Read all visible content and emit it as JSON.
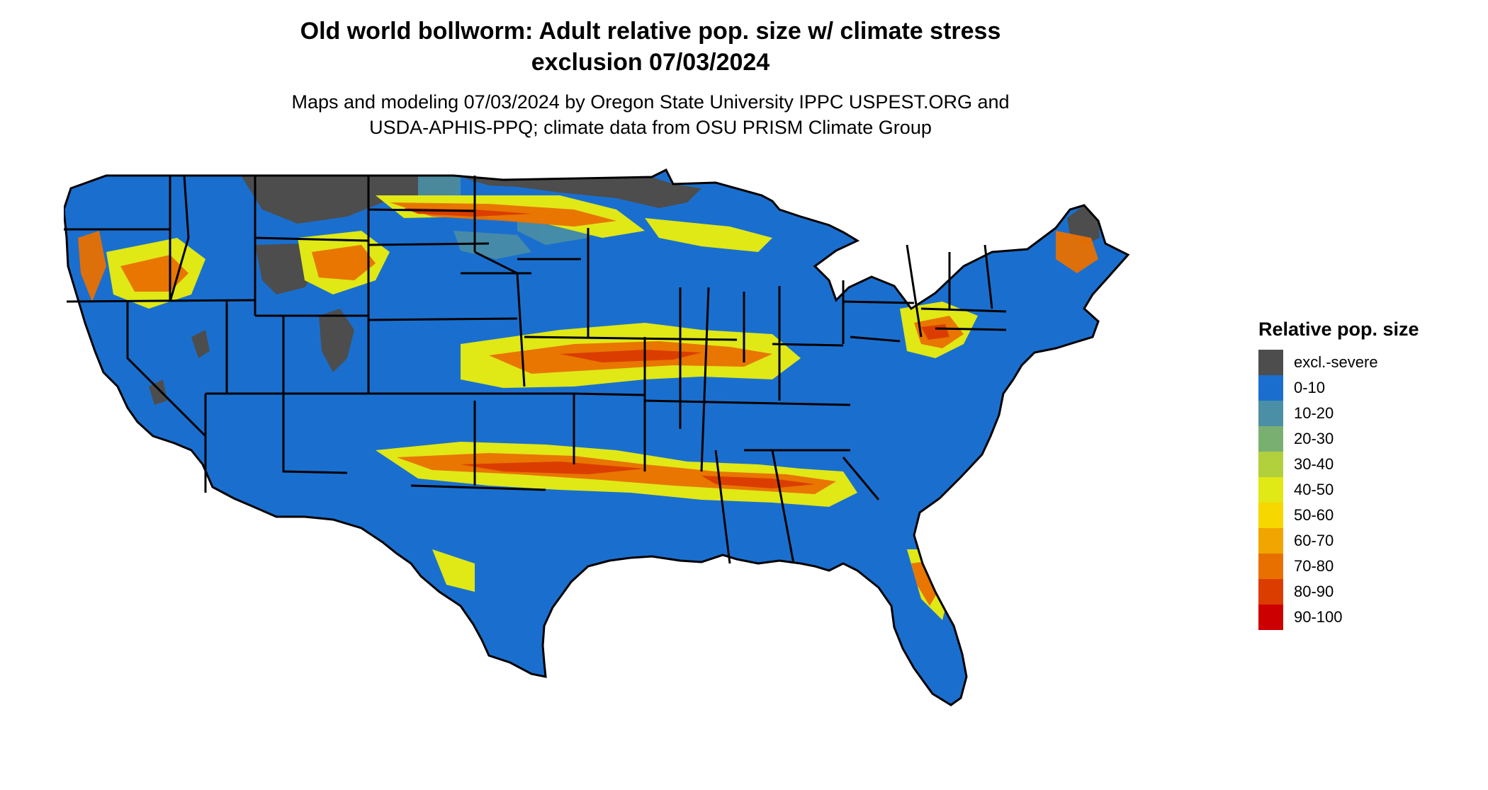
{
  "header": {
    "title_line1": "Old world bollworm: Adult relative pop. size w/ climate stress",
    "title_line2": "exclusion 07/03/2024",
    "subtitle_line1": "Maps and modeling 07/03/2024 by Oregon State University IPPC USPEST.ORG and",
    "subtitle_line2": "USDA-APHIS-PPQ; climate data from OSU PRISM Climate Group"
  },
  "legend": {
    "title": "Relative pop. size",
    "items": [
      {
        "label": "excl.-severe",
        "color": "#4d4d4d"
      },
      {
        "label": "0-10",
        "color": "#1a6fce"
      },
      {
        "label": "10-20",
        "color": "#4a8fa5"
      },
      {
        "label": "20-30",
        "color": "#7aaf72"
      },
      {
        "label": "30-40",
        "color": "#b2cf3c"
      },
      {
        "label": "40-50",
        "color": "#e0e816"
      },
      {
        "label": "50-60",
        "color": "#f6d700"
      },
      {
        "label": "60-70",
        "color": "#f0a500"
      },
      {
        "label": "70-80",
        "color": "#e87000"
      },
      {
        "label": "80-90",
        "color": "#db3d00"
      },
      {
        "label": "90-100",
        "color": "#cc0000"
      }
    ]
  },
  "map": {
    "ocean_color": "#ffffff",
    "base_color": "#1a6fce",
    "excluded_color": "#4d4d4d",
    "border_color": "#000000"
  }
}
